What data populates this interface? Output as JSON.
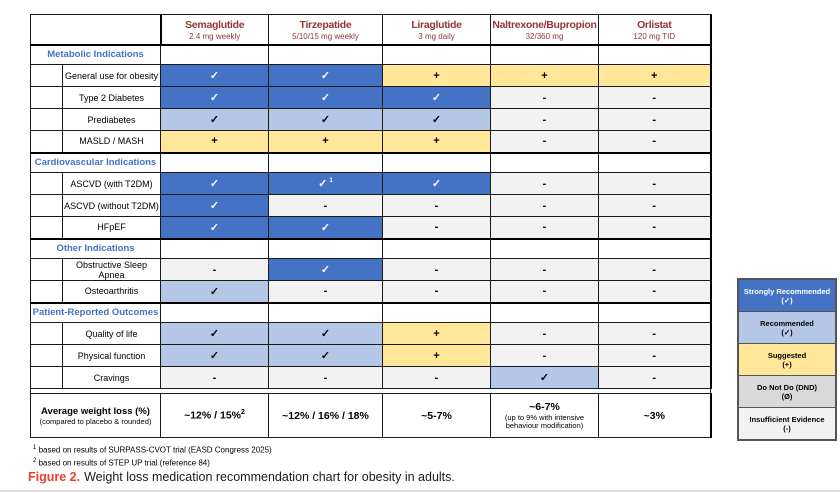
{
  "figure": {
    "caption_label": "Figure 2.",
    "caption_text": "Weight loss medication recommendation chart for obesity in adults.",
    "caption_label_color": "#E8402D"
  },
  "footnotes": [
    {
      "marker": "1",
      "text": "based on results of SURPASS-CVOT trial (EASD Congress 2025)"
    },
    {
      "marker": "2",
      "text": "based on results of STEP UP trial (reference 84)"
    }
  ],
  "colors": {
    "drug_header_text": "#943634",
    "section_title_text": "#4472C4",
    "strongly_recommended_bg": "#4472C4",
    "recommended_bg": "#B4C7E7",
    "suggested_bg": "#FFE699",
    "do_not_do_bg": "#D9D9D9",
    "insufficient_bg": "#F2F2F2"
  },
  "chart_data": {
    "type": "table",
    "title": "Weight loss medication recommendation chart for obesity in adults",
    "columns": [
      {
        "name": "Semaglutide",
        "dose": "2.4 mg weekly"
      },
      {
        "name": "Tirzepatide",
        "dose": "5/10/15 mg weekly"
      },
      {
        "name": "Liraglutide",
        "dose": "3 mg daily"
      },
      {
        "name": "Naltrexone/Bupropion",
        "dose": "32/360 mg"
      },
      {
        "name": "Orlistat",
        "dose": "120 mg TID"
      }
    ],
    "ratings_key": {
      "SR": {
        "label": "Strongly Recommended",
        "symbol": "✓",
        "legend_symbol": "(✓)",
        "bg": "#4472C4",
        "fg": "#FFFFFF"
      },
      "R": {
        "label": "Recommended",
        "symbol": "✓",
        "legend_symbol": "(✓)",
        "bg": "#B4C7E7",
        "fg": "#000000"
      },
      "S": {
        "label": "Suggested",
        "symbol": "+",
        "legend_symbol": "(+)",
        "bg": "#FFE699",
        "fg": "#000000"
      },
      "DND": {
        "label": "Do Not Do (DND)",
        "symbol": "Ø",
        "legend_symbol": "(Ø)",
        "bg": "#D9D9D9",
        "fg": "#000000"
      },
      "IE": {
        "label": "Insufficient Evidence",
        "symbol": "-",
        "legend_symbol": "(-)",
        "bg": "#F2F2F2",
        "fg": "#000000"
      }
    },
    "legend_order": [
      "SR",
      "R",
      "S",
      "DND",
      "IE"
    ],
    "sections": [
      {
        "title": "Metabolic Indications",
        "rows": [
          {
            "label": "General use for obesity",
            "cells": [
              "SR",
              "SR",
              "S",
              "S",
              "S"
            ]
          },
          {
            "label": "Type 2 Diabetes",
            "cells": [
              "SR",
              "SR",
              "SR",
              "IE",
              "IE"
            ]
          },
          {
            "label": "Prediabetes",
            "cells": [
              "R",
              "R",
              "R",
              "IE",
              "IE"
            ]
          },
          {
            "label": "MASLD / MASH",
            "cells": [
              "S",
              "S",
              "S",
              "IE",
              "IE"
            ]
          }
        ]
      },
      {
        "title": "Cardiovascular Indications",
        "rows": [
          {
            "label": "ASCVD (with T2DM)",
            "cells": [
              "SR",
              "SR:1",
              "SR",
              "IE",
              "IE"
            ]
          },
          {
            "label": "ASCVD (without T2DM)",
            "cells": [
              "SR",
              "IE",
              "IE",
              "IE",
              "IE"
            ]
          },
          {
            "label": "HFpEF",
            "cells": [
              "SR",
              "SR",
              "IE",
              "IE",
              "IE"
            ]
          }
        ]
      },
      {
        "title": "Other Indications",
        "rows": [
          {
            "label": "Obstructive Sleep Apnea",
            "cells": [
              "IE",
              "SR",
              "IE",
              "IE",
              "IE"
            ]
          },
          {
            "label": "Osteoarthritis",
            "cells": [
              "R",
              "IE",
              "IE",
              "IE",
              "IE"
            ]
          }
        ]
      },
      {
        "title": "Patient-Reported Outcomes",
        "rows": [
          {
            "label": "Quality of life",
            "cells": [
              "R",
              "R",
              "S",
              "IE",
              "IE"
            ]
          },
          {
            "label": "Physical function",
            "cells": [
              "R",
              "R",
              "S",
              "IE",
              "IE"
            ]
          },
          {
            "label": "Cravings",
            "cells": [
              "IE",
              "IE",
              "IE",
              "R",
              "IE"
            ]
          }
        ]
      }
    ],
    "weight_loss": {
      "label": "Average weight loss (%)",
      "sublabel": "(compared to placebo & rounded)",
      "values": [
        {
          "main": "~12% / 15%",
          "sup": "2",
          "note": ""
        },
        {
          "main": "~12% / 16% / 18%",
          "sup": "",
          "note": ""
        },
        {
          "main": "~5-7%",
          "sup": "",
          "note": ""
        },
        {
          "main": "~6-7%",
          "sup": "",
          "note": "(up to 9% with intensive behaviour modification)"
        },
        {
          "main": "~3%",
          "sup": "",
          "note": ""
        }
      ]
    }
  }
}
